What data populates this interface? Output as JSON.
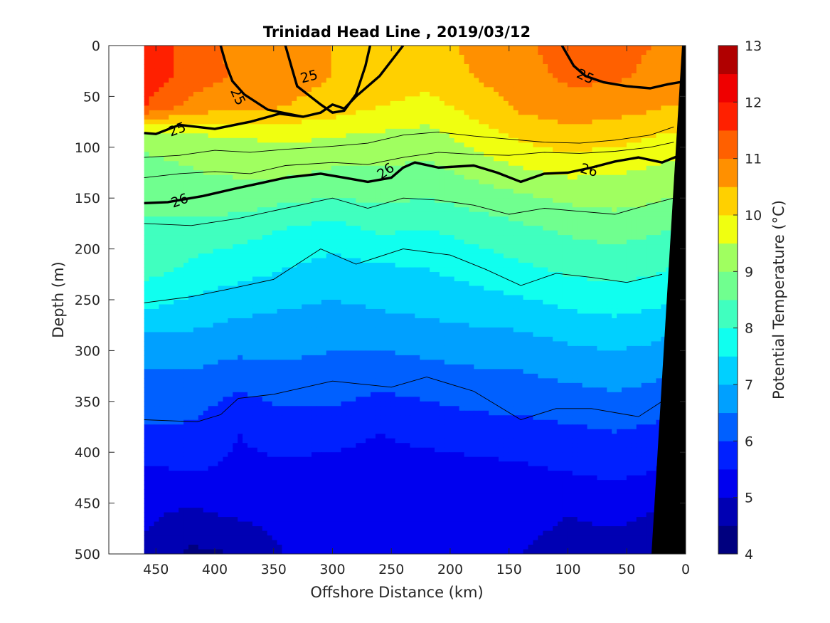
{
  "chart_data": {
    "type": "heatmap",
    "subtype": "filled-contour-section",
    "title": "Trinidad Head Line , 2019/03/12",
    "xlabel": "Offshore Distance (km)",
    "ylabel": "Depth (m)",
    "colorbar_label": "Potential Temperature (°C)",
    "x_reversed": true,
    "y_reversed": true,
    "xlim": [
      0,
      490
    ],
    "ylim": [
      0,
      500
    ],
    "clim": [
      4,
      13
    ],
    "xticks": [
      450,
      400,
      350,
      300,
      250,
      200,
      150,
      100,
      50,
      0
    ],
    "yticks": [
      0,
      50,
      100,
      150,
      200,
      250,
      300,
      350,
      400,
      450,
      500
    ],
    "colorbar_ticks": [
      4,
      5,
      6,
      7,
      8,
      9,
      10,
      11,
      12,
      13
    ],
    "color_levels": [
      {
        "min": 4.0,
        "max": 4.5,
        "color": "#00007f"
      },
      {
        "min": 4.5,
        "max": 5.0,
        "color": "#0000b3"
      },
      {
        "min": 5.0,
        "max": 5.5,
        "color": "#0000ef"
      },
      {
        "min": 5.5,
        "max": 6.0,
        "color": "#0020ff"
      },
      {
        "min": 6.0,
        "max": 6.5,
        "color": "#0060ff"
      },
      {
        "min": 6.5,
        "max": 7.0,
        "color": "#00a0ff"
      },
      {
        "min": 7.0,
        "max": 7.5,
        "color": "#00d0ff"
      },
      {
        "min": 7.5,
        "max": 8.0,
        "color": "#10ffef"
      },
      {
        "min": 8.0,
        "max": 8.5,
        "color": "#40ffbf"
      },
      {
        "min": 8.5,
        "max": 9.0,
        "color": "#70ff8f"
      },
      {
        "min": 9.0,
        "max": 9.5,
        "color": "#a0ff60"
      },
      {
        "min": 9.5,
        "max": 10.0,
        "color": "#f0ff10"
      },
      {
        "min": 10.0,
        "max": 10.5,
        "color": "#ffd000"
      },
      {
        "min": 10.5,
        "max": 11.0,
        "color": "#ff9000"
      },
      {
        "min": 11.0,
        "max": 11.5,
        "color": "#ff6000"
      },
      {
        "min": 11.5,
        "max": 12.0,
        "color": "#ff2000"
      },
      {
        "min": 12.0,
        "max": 12.5,
        "color": "#ef0000"
      },
      {
        "min": 12.5,
        "max": 13.0,
        "color": "#b00000"
      }
    ],
    "data_x_range_km": [
      0,
      460
    ],
    "temperature_field": {
      "x_km": [
        460,
        420,
        380,
        340,
        300,
        260,
        220,
        180,
        140,
        100,
        60,
        30,
        15
      ],
      "depth_m": [
        0,
        30,
        60,
        90,
        120,
        150,
        180,
        220,
        260,
        300,
        340,
        380,
        420,
        460,
        500
      ],
      "values": [
        [
          11.9,
          11.2,
          10.9,
          10.7,
          10.5,
          10.4,
          10.3,
          10.6,
          10.9,
          11.2,
          11.2,
          11.0,
          10.9
        ],
        [
          11.9,
          11.3,
          10.9,
          10.7,
          10.5,
          10.4,
          10.2,
          10.5,
          10.8,
          11.1,
          11.1,
          10.9,
          10.8
        ],
        [
          11.5,
          10.8,
          10.7,
          10.5,
          10.3,
          10.0,
          9.8,
          10.2,
          10.6,
          10.8,
          10.7,
          10.6,
          10.5
        ],
        [
          9.2,
          9.4,
          9.5,
          9.6,
          9.5,
          9.4,
          9.3,
          9.7,
          10.1,
          10.3,
          10.2,
          10.0,
          9.9
        ],
        [
          8.8,
          9.0,
          9.1,
          9.2,
          9.0,
          9.0,
          8.9,
          9.2,
          9.5,
          9.7,
          9.6,
          9.5,
          9.4
        ],
        [
          8.7,
          8.9,
          8.8,
          8.6,
          8.5,
          8.6,
          8.5,
          8.7,
          8.9,
          9.1,
          9.2,
          9.1,
          9.0
        ],
        [
          8.4,
          8.3,
          8.2,
          8.0,
          7.8,
          8.1,
          8.0,
          8.2,
          8.4,
          8.6,
          8.7,
          8.6,
          8.5
        ],
        [
          8.2,
          7.9,
          7.7,
          7.5,
          7.3,
          7.4,
          7.5,
          7.7,
          7.9,
          8.1,
          8.2,
          8.1,
          8.0
        ],
        [
          7.5,
          7.3,
          7.1,
          7.0,
          6.9,
          7.0,
          7.1,
          7.2,
          7.3,
          7.5,
          7.6,
          7.5,
          7.4
        ],
        [
          6.6,
          6.7,
          6.6,
          6.6,
          6.5,
          6.5,
          6.6,
          6.7,
          6.7,
          6.9,
          7.0,
          6.9,
          6.8
        ],
        [
          6.4,
          6.3,
          6.0,
          6.2,
          6.2,
          6.0,
          6.1,
          6.2,
          6.3,
          6.4,
          6.5,
          6.4,
          6.3
        ],
        [
          5.9,
          5.9,
          5.5,
          5.7,
          5.7,
          5.5,
          5.7,
          5.8,
          5.8,
          5.9,
          6.0,
          5.9,
          5.8
        ],
        [
          5.4,
          5.5,
          5.4,
          5.4,
          5.3,
          5.3,
          5.2,
          5.3,
          5.4,
          5.5,
          5.6,
          5.5,
          5.4
        ],
        [
          5.1,
          4.9,
          5.1,
          5.2,
          5.1,
          5.0,
          5.0,
          5.0,
          5.1,
          5.0,
          5.1,
          5.0,
          5.0
        ],
        [
          4.9,
          4.4,
          4.5,
          5.0,
          5.0,
          5.0,
          5.0,
          5.0,
          5.0,
          4.9,
          4.8,
          4.8,
          4.8
        ]
      ]
    },
    "bottom_topography": {
      "color": "#000000",
      "points": [
        [
          3,
          0
        ],
        [
          0,
          0
        ],
        [
          0,
          500
        ],
        [
          29,
          500
        ]
      ]
    },
    "isopycnals_thin": [
      [
        [
          460,
          110
        ],
        [
          430,
          108
        ],
        [
          400,
          103
        ],
        [
          370,
          105
        ],
        [
          340,
          102
        ],
        [
          300,
          99
        ],
        [
          270,
          96
        ],
        [
          240,
          88
        ],
        [
          210,
          85
        ],
        [
          180,
          89
        ],
        [
          150,
          92
        ],
        [
          120,
          95
        ],
        [
          90,
          96
        ],
        [
          60,
          93
        ],
        [
          30,
          88
        ],
        [
          10,
          80
        ]
      ],
      [
        [
          460,
          130
        ],
        [
          430,
          126
        ],
        [
          400,
          124
        ],
        [
          370,
          126
        ],
        [
          340,
          118
        ],
        [
          300,
          115
        ],
        [
          270,
          117
        ],
        [
          240,
          110
        ],
        [
          210,
          105
        ],
        [
          180,
          107
        ],
        [
          150,
          108
        ],
        [
          120,
          105
        ],
        [
          90,
          106
        ],
        [
          60,
          104
        ],
        [
          30,
          100
        ],
        [
          10,
          95
        ]
      ],
      [
        [
          460,
          175
        ],
        [
          420,
          177
        ],
        [
          380,
          170
        ],
        [
          340,
          160
        ],
        [
          300,
          150
        ],
        [
          270,
          160
        ],
        [
          240,
          150
        ],
        [
          210,
          152
        ],
        [
          180,
          157
        ],
        [
          150,
          166
        ],
        [
          120,
          160
        ],
        [
          90,
          163
        ],
        [
          60,
          166
        ],
        [
          30,
          156
        ],
        [
          10,
          150
        ]
      ],
      [
        [
          460,
          253
        ],
        [
          420,
          247
        ],
        [
          390,
          240
        ],
        [
          350,
          230
        ],
        [
          310,
          200
        ],
        [
          280,
          215
        ],
        [
          240,
          200
        ],
        [
          200,
          206
        ],
        [
          170,
          220
        ],
        [
          140,
          236
        ],
        [
          110,
          224
        ],
        [
          80,
          228
        ],
        [
          50,
          233
        ],
        [
          20,
          225
        ]
      ],
      [
        [
          460,
          368
        ],
        [
          415,
          370
        ],
        [
          395,
          363
        ],
        [
          380,
          347
        ],
        [
          350,
          343
        ],
        [
          300,
          330
        ],
        [
          250,
          336
        ],
        [
          220,
          326
        ],
        [
          180,
          340
        ],
        [
          140,
          368
        ],
        [
          110,
          357
        ],
        [
          80,
          357
        ],
        [
          40,
          365
        ],
        [
          20,
          350
        ]
      ]
    ],
    "isopycnals_thick": [
      {
        "label": "25",
        "points": [
          [
            460,
            86
          ],
          [
            450,
            87
          ],
          [
            430,
            78
          ],
          [
            400,
            82
          ],
          [
            370,
            75
          ],
          [
            345,
            67
          ],
          [
            325,
            70
          ],
          [
            310,
            66
          ],
          [
            300,
            58
          ],
          [
            290,
            62
          ],
          [
            280,
            50
          ],
          [
            260,
            30
          ],
          [
            250,
            15
          ],
          [
            240,
            0
          ]
        ]
      },
      {
        "label": "25",
        "points": [
          [
            395,
            0
          ],
          [
            390,
            20
          ],
          [
            385,
            35
          ],
          [
            375,
            48
          ],
          [
            355,
            63
          ],
          [
            325,
            70
          ]
        ]
      },
      {
        "label": "25",
        "points": [
          [
            340,
            0
          ],
          [
            335,
            20
          ],
          [
            330,
            40
          ],
          [
            310,
            58
          ],
          [
            300,
            66
          ],
          [
            290,
            64
          ],
          [
            280,
            48
          ],
          [
            272,
            20
          ],
          [
            268,
            0
          ]
        ]
      },
      {
        "label": "25",
        "points": [
          [
            105,
            0
          ],
          [
            95,
            20
          ],
          [
            85,
            30
          ],
          [
            70,
            36
          ],
          [
            50,
            40
          ],
          [
            30,
            42
          ],
          [
            15,
            38
          ],
          [
            0,
            35
          ]
        ]
      },
      {
        "label": "26",
        "points": [
          [
            460,
            155
          ],
          [
            440,
            154
          ],
          [
            410,
            148
          ],
          [
            380,
            140
          ],
          [
            360,
            135
          ],
          [
            340,
            130
          ],
          [
            310,
            126
          ],
          [
            290,
            130
          ],
          [
            270,
            134
          ],
          [
            250,
            130
          ],
          [
            240,
            120
          ],
          [
            230,
            115
          ],
          [
            210,
            120
          ],
          [
            180,
            118
          ],
          [
            160,
            125
          ],
          [
            140,
            134
          ],
          [
            120,
            126
          ],
          [
            100,
            125
          ],
          [
            80,
            120
          ],
          [
            60,
            114
          ],
          [
            40,
            110
          ],
          [
            20,
            115
          ],
          [
            5,
            108
          ]
        ]
      }
    ],
    "contour_labels": [
      {
        "text": "25",
        "x": 432,
        "y": 82,
        "rotation": -20
      },
      {
        "text": "25",
        "x": 380,
        "y": 50,
        "rotation": 65
      },
      {
        "text": "25",
        "x": 320,
        "y": 30,
        "rotation": -15
      },
      {
        "text": "25",
        "x": 85,
        "y": 30,
        "rotation": 25
      },
      {
        "text": "26",
        "x": 430,
        "y": 152,
        "rotation": -20
      },
      {
        "text": "26",
        "x": 255,
        "y": 123,
        "rotation": -35
      },
      {
        "text": "26",
        "x": 82,
        "y": 122,
        "rotation": 15
      }
    ]
  }
}
